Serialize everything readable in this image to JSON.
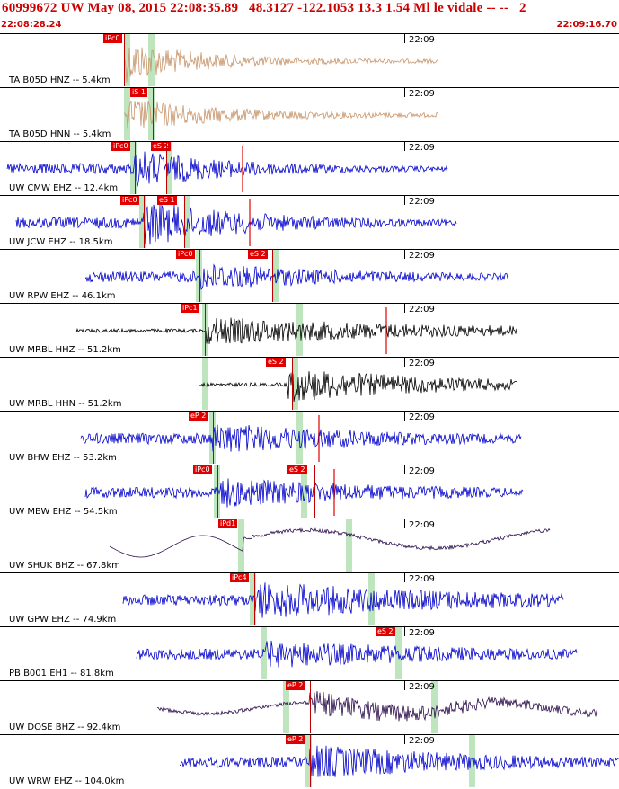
{
  "header": {
    "title": "60999672 UW May 08, 2015 22:08:35.89   48.3127 -122.1053 13.3 1.54 Ml le vidale -- --   2",
    "start_time": "22:08:28.24",
    "end_time": "22:09:16.70",
    "title_color": "#cc0000"
  },
  "time_mark": "22:09",
  "colors": {
    "broadband": "#c8956a",
    "short_period": "#0000cc",
    "strong_motion": "#000000",
    "long_period": "#2a0a4a",
    "pick": "#e00000",
    "band": "#a8dca8"
  },
  "traces": [
    {
      "label": "TA B05D HNZ -- 5.4km",
      "color": "broadband",
      "picks": [
        "iPc0"
      ],
      "start": 0.0,
      "end": 0.71
    },
    {
      "label": "TA B05D HNN -- 5.4km",
      "color": "broadband",
      "picks": [
        "iS 1"
      ],
      "start": 0.0,
      "end": 0.71
    },
    {
      "label": "UW CMW EHZ -- 12.4km",
      "color": "short_period",
      "picks": [
        "iPc0",
        "eS 2"
      ],
      "start": 0.01,
      "end": 0.72
    },
    {
      "label": "UW JCW EHZ -- 18.5km",
      "color": "short_period",
      "picks": [
        "iPc0",
        "eS 1"
      ],
      "start": 0.03,
      "end": 0.74
    },
    {
      "label": "UW RPW EHZ -- 46.1km",
      "color": "short_period",
      "picks": [
        "iPc0",
        "eS 2"
      ],
      "start": 0.11,
      "end": 0.82
    },
    {
      "label": "UW MRBL HHZ -- 51.2km",
      "color": "strong_motion",
      "picks": [
        "iPc1"
      ],
      "start": 0.13,
      "end": 0.83
    },
    {
      "label": "UW MRBL HHN -- 51.2km",
      "color": "strong_motion",
      "picks": [
        "eS 2"
      ],
      "start": 0.23,
      "end": 0.84
    },
    {
      "label": "UW BHW EHZ -- 53.2km",
      "color": "short_period",
      "picks": [
        "eP 2"
      ],
      "start": 0.13,
      "end": 0.84
    },
    {
      "label": "UW MBW EHZ -- 54.5km",
      "color": "short_period",
      "picks": [
        "iPc0",
        "eS 2"
      ],
      "start": 0.14,
      "end": 0.85
    },
    {
      "label": "UW SHUK BHZ -- 67.8km",
      "color": "long_period",
      "picks": [
        "iPd1"
      ],
      "start": 0.18,
      "end": 0.89
    },
    {
      "label": "UW GPW EHZ -- 74.9km",
      "color": "short_period",
      "picks": [
        "iPc4"
      ],
      "start": 0.2,
      "end": 0.91
    },
    {
      "label": "PB B001 EH1 -- 81.8km",
      "color": "short_period",
      "picks": [
        "eS 2"
      ],
      "start": 0.22,
      "end": 0.93
    },
    {
      "label": "UW DOSE BHZ -- 92.4km",
      "color": "long_period",
      "picks": [
        "eP 2"
      ],
      "start": 0.25,
      "end": 0.96
    },
    {
      "label": "UW WRW EHZ -- 104.0km",
      "color": "short_period",
      "picks": [
        "eP 2"
      ],
      "start": 0.29,
      "end": 1.0
    }
  ]
}
